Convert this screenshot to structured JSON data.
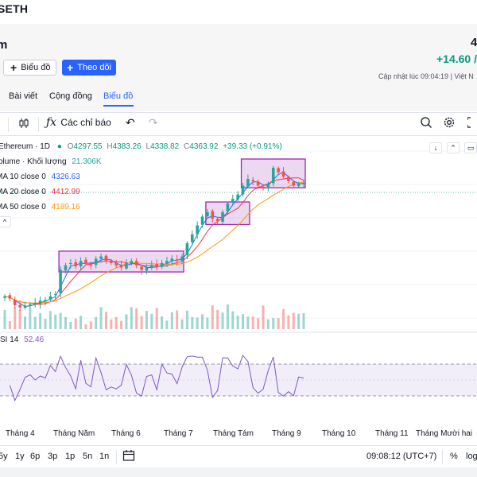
{
  "symbol": "SETH",
  "header": {
    "name": "m",
    "price_fragment": "4",
    "change": "+14.60 /",
    "updated": "Cập nhật lúc  09:04:19 | Việt N",
    "buttons": {
      "chart": "Biểu đồ",
      "follow": "Theo dõi"
    },
    "tabs": [
      {
        "label": "Bài viết"
      },
      {
        "label": "Cộng đồng"
      },
      {
        "label": "Biểu đồ"
      }
    ]
  },
  "toolbar": {
    "indicators": "Các chỉ báo"
  },
  "legend": {
    "symbol": "Ethereum · 1D",
    "o_label": "O",
    "o": "4297.55",
    "h_label": "H",
    "h": "4383.26",
    "l_label": "L",
    "l": "4338.82",
    "c_label": "C",
    "c": "4363.92",
    "change": "+39.33 (+0.91%)",
    "volume_label": "olume · Khối lượng",
    "volume": "21.306K",
    "ma10_label": "MA 10 close 0",
    "ma10": "4326.63",
    "ma20_label": "MA 20 close 0",
    "ma20": "4412.99",
    "ma50_label": "MA 50 close 0",
    "ma50": "4189.16"
  },
  "rsi": {
    "label": "SI 14",
    "value": "52.46"
  },
  "xaxis": [
    "Tháng 4",
    "Tháng Năm",
    "Tháng 6",
    "Tháng 7",
    "Tháng Tám",
    "Tháng 9",
    "Tháng 10",
    "Tháng 11",
    "Tháng Mười hai"
  ],
  "bottombar": {
    "ranges": [
      "5y",
      "1y",
      "6p",
      "3p",
      "1p",
      "5n",
      "1n"
    ],
    "time": "09:08:12 (UTC+7)",
    "percent": "%",
    "log": "log"
  },
  "colors": {
    "up": "#26a69a",
    "down": "#ef5350",
    "ma10": "#2962ff",
    "ma20": "#f23645",
    "ma50": "#ff9800",
    "rsi": "#7e57c2",
    "box": "#9c27b0",
    "accent": "#2962ff"
  },
  "chart_data": {
    "type": "candlestick",
    "timeframe": "1D",
    "x_ticks": [
      "Tháng 4",
      "Tháng Năm",
      "Tháng 6",
      "Tháng 7",
      "Tháng Tám",
      "Tháng 9",
      "Tháng 10",
      "Tháng 11",
      "Tháng Mười hai"
    ],
    "last_ohlc": {
      "open": 4297.55,
      "high": 4383.26,
      "low": 4338.82,
      "close": 4363.92
    },
    "moving_averages": [
      {
        "name": "MA 10",
        "value": 4326.63
      },
      {
        "name": "MA 20",
        "value": 4412.99
      },
      {
        "name": "MA 50",
        "value": 4189.16
      }
    ],
    "rsi": {
      "period": 14,
      "value": 52.46,
      "bands": [
        30,
        70
      ]
    },
    "volume": 21306,
    "close_series": [
      1800,
      1750,
      1600,
      1550,
      1580,
      1620,
      1650,
      1700,
      1720,
      1800,
      1850,
      2400,
      2500,
      2550,
      2480,
      2600,
      2550,
      2500,
      2650,
      2700,
      2600,
      2550,
      2500,
      2450,
      2550,
      2600,
      2500,
      2400,
      2450,
      2500,
      2450,
      2550,
      2600,
      2650,
      2600,
      2700,
      3000,
      3200,
      3400,
      3600,
      3700,
      3550,
      3500,
      3700,
      3900,
      4000,
      4100,
      4300,
      4450,
      4400,
      4300,
      4250,
      4350,
      4700,
      4600,
      4500,
      4400,
      4300,
      4350,
      4363.92
    ]
  }
}
